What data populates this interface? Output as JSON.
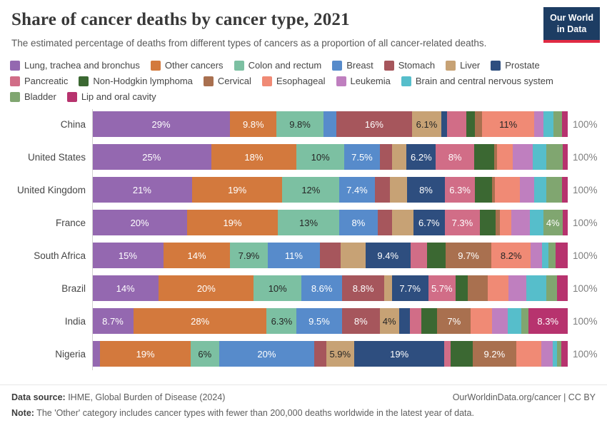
{
  "header": {
    "title": "Share of cancer deaths by cancer type, 2021",
    "subtitle": "The estimated percentage of deaths from different types of cancers as a proportion of all cancer-related deaths.",
    "logo": {
      "line1": "Our World",
      "line2": "in Data",
      "navy": "#1d3d63",
      "red": "#e02a43"
    }
  },
  "chart_data": {
    "type": "bar",
    "stacked": true,
    "orientation": "horizontal",
    "unit": "%",
    "total_label": "100%",
    "categories": [
      "China",
      "United States",
      "United Kingdom",
      "France",
      "South Africa",
      "Brazil",
      "India",
      "Nigeria"
    ],
    "series": [
      {
        "name": "Lung, trachea and bronchus",
        "color": "#9468B0",
        "text": "light",
        "values": [
          29,
          25,
          21,
          20,
          15,
          14,
          8.7,
          1.7
        ],
        "labels": [
          "29%",
          "25%",
          "21%",
          "20%",
          "15%",
          "14%",
          "8.7%",
          ""
        ]
      },
      {
        "name": "Other cancers",
        "color": "#D3793D",
        "text": "light",
        "values": [
          9.8,
          18,
          19,
          19,
          14,
          20,
          28,
          19
        ],
        "labels": [
          "9.8%",
          "18%",
          "19%",
          "19%",
          "14%",
          "20%",
          "28%",
          "19%"
        ]
      },
      {
        "name": "Colon and rectum",
        "color": "#7CC0A2",
        "text": "dark",
        "values": [
          9.8,
          10,
          12,
          13,
          7.9,
          10,
          6.3,
          6
        ],
        "labels": [
          "9.8%",
          "10%",
          "12%",
          "13%",
          "7.9%",
          "10%",
          "6.3%",
          "6%"
        ]
      },
      {
        "name": "Breast",
        "color": "#578BCB",
        "text": "light",
        "values": [
          2.7,
          7.5,
          7.4,
          8,
          11,
          8.6,
          9.5,
          20
        ],
        "labels": [
          "",
          "7.5%",
          "7.4%",
          "8%",
          "11%",
          "8.6%",
          "9.5%",
          "20%"
        ]
      },
      {
        "name": "Stomach",
        "color": "#A6565C",
        "text": "light",
        "values": [
          16,
          2.6,
          3.2,
          3,
          4.4,
          8.8,
          8,
          2.5
        ],
        "labels": [
          "16%",
          "",
          "",
          "",
          "",
          "8.8%",
          "8%",
          ""
        ]
      },
      {
        "name": "Liver",
        "color": "#C7A275",
        "text": "dark",
        "values": [
          6.1,
          3,
          3.6,
          4.5,
          5.2,
          1.6,
          4,
          5.9
        ],
        "labels": [
          "6.1%",
          "",
          "",
          "",
          "",
          "",
          "4%",
          "5.9%"
        ]
      },
      {
        "name": "Prostate",
        "color": "#2E4E7F",
        "text": "light",
        "values": [
          1.3,
          6.2,
          8,
          6.7,
          9.4,
          7.7,
          2.4,
          19
        ],
        "labels": [
          "",
          "6.2%",
          "8%",
          "6.7%",
          "9.4%",
          "7.7%",
          "",
          "19%"
        ]
      },
      {
        "name": "Pancreatic",
        "color": "#D16D87",
        "text": "light",
        "values": [
          4,
          8,
          6.3,
          7.3,
          3.6,
          5.7,
          2.3,
          1.3
        ],
        "labels": [
          "",
          "8%",
          "6.3%",
          "7.3%",
          "",
          "5.7%",
          "",
          ""
        ]
      },
      {
        "name": "Non-Hodgkin lymphoma",
        "color": "#3B6832",
        "text": "light",
        "values": [
          1.8,
          4.2,
          3.6,
          3.4,
          3.8,
          2.6,
          3.4,
          4.6
        ],
        "labels": [
          "",
          "",
          "",
          "",
          "",
          "",
          "",
          ""
        ]
      },
      {
        "name": "Cervical",
        "color": "#A9704F",
        "text": "light",
        "values": [
          1.5,
          0.7,
          0.6,
          0.9,
          9.7,
          4.2,
          7,
          9.2
        ],
        "labels": [
          "",
          "",
          "",
          "",
          "9.7%",
          "",
          "7%",
          "9.2%"
        ]
      },
      {
        "name": "Esophageal",
        "color": "#F08A75",
        "text": "dark",
        "values": [
          11,
          3.2,
          5.2,
          2.3,
          8.2,
          4.3,
          4.5,
          5.2
        ],
        "labels": [
          "11%",
          "",
          "",
          "",
          "8.2%",
          "",
          "",
          ""
        ]
      },
      {
        "name": "Leukemia",
        "color": "#BF7FBF",
        "text": "light",
        "values": [
          1.9,
          4.3,
          3,
          4,
          2.4,
          3.8,
          3.3,
          2.4
        ],
        "labels": [
          "",
          "",
          "",
          "",
          "",
          "",
          "",
          ""
        ]
      },
      {
        "name": "Brain and central nervous system",
        "color": "#56BECB",
        "text": "light",
        "values": [
          2.1,
          2.8,
          2.6,
          2.8,
          1.4,
          4.2,
          2.8,
          0.9
        ],
        "labels": [
          "",
          "",
          "",
          "",
          "",
          "",
          "",
          ""
        ]
      },
      {
        "name": "Bladder",
        "color": "#80A670",
        "text": "light",
        "values": [
          1.8,
          3.4,
          3.3,
          4,
          1.5,
          2.2,
          1.5,
          0.9
        ],
        "labels": [
          "",
          "",
          "",
          "4%",
          "",
          "",
          "",
          ""
        ]
      },
      {
        "name": "Lip and oral cavity",
        "color": "#B7336E",
        "text": "light",
        "values": [
          1.2,
          1.1,
          1.2,
          1.1,
          2.5,
          2.3,
          8.3,
          1.4
        ],
        "labels": [
          "",
          "",
          "",
          "",
          "",
          "",
          "8.3%",
          ""
        ]
      }
    ]
  },
  "footer": {
    "datasource_label": "Data source:",
    "datasource_text": " IHME, Global Burden of Disease (2024)",
    "rights": "OurWorldinData.org/cancer | CC BY",
    "note_label": "Note:",
    "note_text": " The 'Other' category includes cancer types with fewer than 200,000 deaths worldwide in the latest year of data."
  }
}
